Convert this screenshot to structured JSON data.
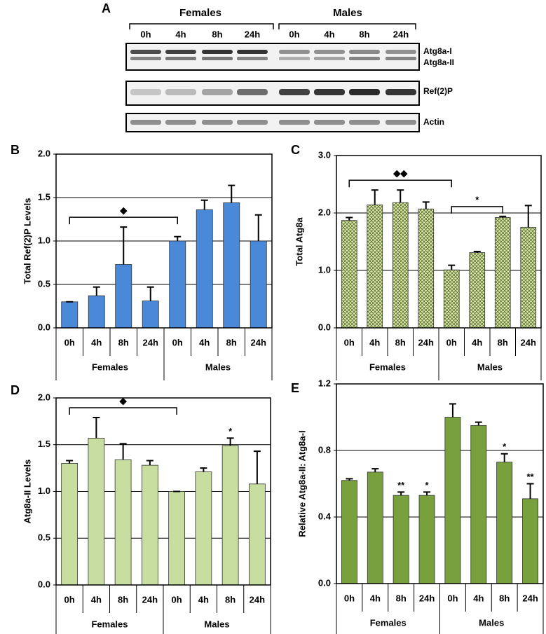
{
  "blot": {
    "panel": "A",
    "groups": [
      "Females",
      "Males"
    ],
    "lanes": [
      "0h",
      "4h",
      "8h",
      "24h",
      "0h",
      "4h",
      "8h",
      "24h"
    ],
    "bands": [
      "Atg8a-I",
      "Atg8a-II",
      "Ref(2)P",
      "Actin"
    ]
  },
  "chart_data": [
    {
      "type": "bar",
      "panel": "B",
      "ylabel": "Total Ref(2)P Levels",
      "categories": [
        "0h",
        "4h",
        "8h",
        "24h",
        "0h",
        "4h",
        "8h",
        "24h"
      ],
      "groups": [
        "Females",
        "Males"
      ],
      "values": [
        0.3,
        0.37,
        0.73,
        0.31,
        1.0,
        1.36,
        1.44,
        1.0
      ],
      "errors": [
        0,
        0.1,
        0.43,
        0.16,
        0.05,
        0.11,
        0.2,
        0.3
      ],
      "color": "#4a88d8",
      "ylim": [
        0,
        2
      ],
      "yticks": [
        {
          "value": 0,
          "label": "0.0"
        },
        0.5,
        {
          "value": 1,
          "label": "1.0"
        },
        1.5,
        {
          "value": 2,
          "label": "2.0"
        }
      ],
      "grid": true,
      "brackets": [
        {
          "text": "◆",
          "from": 0,
          "to": 4
        }
      ],
      "marks": []
    },
    {
      "type": "bar",
      "panel": "C",
      "ylabel": "Total Atg8a",
      "categories": [
        "0h",
        "4h",
        "8h",
        "24h",
        "0h",
        "4h",
        "8h",
        "24h"
      ],
      "groups": [
        "Females",
        "Males"
      ],
      "values": [
        1.87,
        2.14,
        2.18,
        2.07,
        1.01,
        1.31,
        1.92,
        1.75
      ],
      "errors": [
        0.05,
        0.26,
        0.22,
        0.12,
        0.08,
        0.02,
        0.02,
        0.38
      ],
      "color": "#dbe8a8",
      "pattern": "crosshatch",
      "ylim": [
        0,
        3
      ],
      "yticks": [
        {
          "value": 0,
          "label": "0.0"
        },
        {
          "value": 1,
          "label": "1.0"
        },
        {
          "value": 2,
          "label": "2.0"
        },
        {
          "value": 3,
          "label": "3.0"
        }
      ],
      "grid": true,
      "brackets": [
        {
          "text": "◆◆",
          "from": 0,
          "to": 4
        },
        {
          "text": "*",
          "from": 4,
          "to": 6
        }
      ],
      "marks": []
    },
    {
      "type": "bar",
      "panel": "D",
      "ylabel": "Atg8a-II Levels",
      "categories": [
        "0h",
        "4h",
        "8h",
        "24h",
        "0h",
        "4h",
        "8h",
        "24h"
      ],
      "groups": [
        "Females",
        "Males"
      ],
      "values": [
        1.3,
        1.57,
        1.34,
        1.28,
        1.0,
        1.21,
        1.49,
        1.08
      ],
      "errors": [
        0.03,
        0.22,
        0.17,
        0.05,
        0,
        0.04,
        0.08,
        0.35
      ],
      "color": "#c8dea0",
      "ylim": [
        0,
        2
      ],
      "yticks": [
        {
          "value": 0,
          "label": "0.0"
        },
        0.5,
        {
          "value": 1,
          "label": "1.0"
        },
        1.5,
        {
          "value": 2,
          "label": "2.0"
        }
      ],
      "grid": true,
      "brackets": [
        {
          "text": "◆",
          "from": 0,
          "to": 4
        }
      ],
      "marks": [
        {
          "text": "*",
          "at": 6
        }
      ]
    },
    {
      "type": "bar",
      "panel": "E",
      "ylabel": "Relative Atg8a-II: Atg8a-I",
      "categories": [
        "0h",
        "4h",
        "8h",
        "24h",
        "0h",
        "4h",
        "8h",
        "24h"
      ],
      "groups": [
        "Females",
        "Males"
      ],
      "values": [
        0.62,
        0.67,
        0.53,
        0.53,
        1.0,
        0.95,
        0.73,
        0.51
      ],
      "errors": [
        0.01,
        0.02,
        0.02,
        0.02,
        0.08,
        0.02,
        0.05,
        0.09
      ],
      "color": "#78a03c",
      "ylim": [
        0,
        1.2
      ],
      "yticks": [
        {
          "value": 0,
          "label": "0.0"
        },
        0.4,
        0.8,
        1.2
      ],
      "grid": true,
      "brackets": [],
      "marks": [
        {
          "text": "**",
          "at": 2
        },
        {
          "text": "*",
          "at": 3
        },
        {
          "text": "*",
          "at": 6
        },
        {
          "text": "**",
          "at": 7
        }
      ]
    }
  ]
}
